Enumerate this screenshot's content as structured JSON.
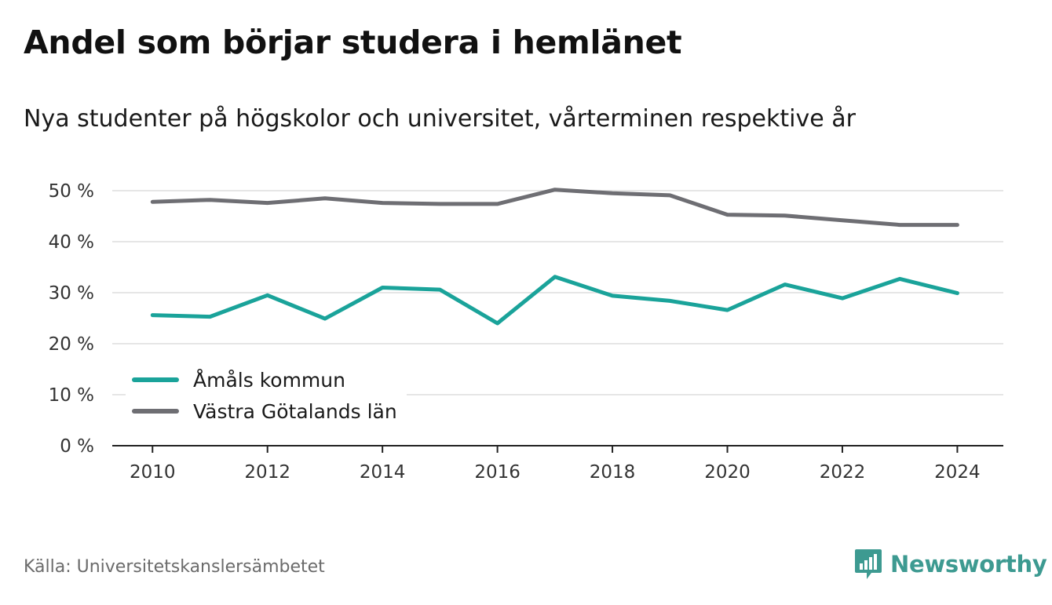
{
  "header": {
    "title": "Andel som börjar studera i hemlänet",
    "subtitle": "Nya studenter på högskolor och universitet, vårterminen respektive år"
  },
  "footer": {
    "source": "Källa: Universitetskanslersämbetet",
    "brand": "Newsworthy"
  },
  "colors": {
    "series_1": "#1aa39a",
    "series_2": "#6e6e73",
    "grid": "#dddddd",
    "axis": "#222222",
    "brand": "#3d9a91"
  },
  "icons": {
    "brand_logo": "newsworthy-logo-icon"
  },
  "chart_data": {
    "type": "line",
    "x": [
      2010,
      2011,
      2012,
      2013,
      2014,
      2015,
      2016,
      2017,
      2018,
      2019,
      2020,
      2021,
      2022,
      2023,
      2024
    ],
    "x_tick_labels": [
      "2010",
      "2012",
      "2014",
      "2016",
      "2018",
      "2020",
      "2022",
      "2024"
    ],
    "x_ticks": [
      2010,
      2012,
      2014,
      2016,
      2018,
      2020,
      2022,
      2024
    ],
    "y_tick_labels": [
      "0 %",
      "10 %",
      "20 %",
      "30 %",
      "40 %",
      "50 %"
    ],
    "y_ticks": [
      0,
      10,
      20,
      30,
      40,
      50
    ],
    "xlim": [
      2009.3,
      2024.8
    ],
    "ylim": [
      0,
      52
    ],
    "grid": true,
    "legend_position": "bottom-left",
    "series": [
      {
        "name": "Åmåls kommun",
        "values": [
          25.6,
          25.3,
          29.5,
          24.9,
          31.0,
          30.6,
          24.0,
          33.1,
          29.4,
          28.4,
          26.6,
          31.6,
          28.9,
          32.7,
          29.9
        ]
      },
      {
        "name": "Västra Götalands län",
        "values": [
          47.8,
          48.2,
          47.6,
          48.5,
          47.6,
          47.4,
          47.4,
          50.2,
          49.5,
          49.1,
          45.3,
          45.1,
          44.2,
          43.3,
          43.3
        ]
      }
    ]
  }
}
